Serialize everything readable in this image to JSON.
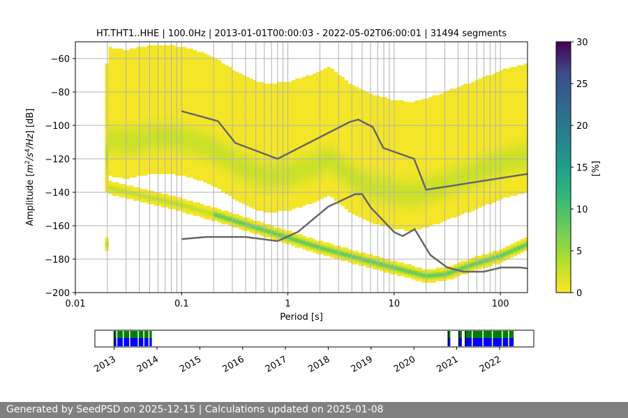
{
  "chart_data": {
    "type": "heatmap",
    "title": "HT.THT1..HHE | 100.0Hz | 2013-01-01T00:00:03 - 2022-05-02T06:00:01 | 31494 segments",
    "xlabel": "Period [s]",
    "ylabel": "Amplitude [m²/s⁴/Hz] [dB]",
    "ylabel_parts": [
      "Amplitude [",
      "m",
      "2",
      "/s",
      "4",
      "/Hz",
      "] [dB]"
    ],
    "xscale": "log",
    "xlim": [
      0.01,
      180
    ],
    "ylim": [
      -200,
      -50
    ],
    "x_ticks": [
      {
        "value": 0.01,
        "label": "0.01"
      },
      {
        "value": 0.1,
        "label": "0.1"
      },
      {
        "value": 1,
        "label": "1"
      },
      {
        "value": 10,
        "label": "10"
      },
      {
        "value": 100,
        "label": "100"
      }
    ],
    "y_ticks": [
      -200,
      -180,
      -160,
      -140,
      -120,
      -100,
      -80,
      -60
    ],
    "grid": true,
    "colorbar": {
      "label": "[%]",
      "range": [
        0,
        30
      ],
      "ticks": [
        0,
        5,
        10,
        15,
        20,
        25,
        30
      ],
      "colormap": "viridis_r"
    },
    "nhnm": {
      "name": "New High Noise Model",
      "x": [
        0.1,
        0.22,
        0.32,
        0.8,
        3.8,
        4.6,
        6.3,
        7.9,
        15.4,
        20,
        180
      ],
      "y": [
        -91.5,
        -97.4,
        -110.5,
        -120,
        -98,
        -96.5,
        -101,
        -113.5,
        -120,
        -138.5,
        -129
      ]
    },
    "nlnm": {
      "name": "New Low Noise Model",
      "x": [
        0.1,
        0.17,
        0.4,
        0.8,
        1.24,
        2.4,
        4.3,
        5,
        6,
        10,
        12,
        15.6,
        21.9,
        31.6,
        45,
        70,
        101,
        154,
        180
      ],
      "y": [
        -168,
        -166.7,
        -166.7,
        -169.2,
        -163.7,
        -148.6,
        -141.1,
        -141.1,
        -149,
        -163.8,
        -166.2,
        -162.1,
        -177.5,
        -185,
        -187.5,
        -187.5,
        -185,
        -185,
        -185.5
      ]
    },
    "psd_ridges": [
      {
        "name": "mode",
        "x": [
          0.02,
          0.03,
          0.05,
          0.08,
          0.12,
          0.2,
          0.35,
          0.6,
          1,
          1.6,
          2.5,
          4,
          6,
          10,
          15,
          20,
          30,
          60,
          100,
          180
        ],
        "y": [
          -108,
          -110,
          -107,
          -107,
          -109,
          -114,
          -124,
          -130,
          -129,
          -125,
          -120,
          -131,
          -136,
          -140,
          -141,
          -139,
          -135,
          -128,
          -122,
          -118
        ]
      },
      {
        "name": "instrument-noise",
        "x": [
          0.02,
          0.05,
          0.1,
          0.2,
          0.5,
          1,
          2,
          5,
          10,
          20,
          30,
          50,
          100,
          180
        ],
        "y": [
          -137,
          -143,
          -147.5,
          -153,
          -161,
          -167,
          -173,
          -180,
          -185,
          -190,
          -189,
          -184,
          -178,
          -171
        ]
      }
    ]
  },
  "availability": {
    "year_labels": [
      "2013",
      "2014",
      "2015",
      "2016",
      "2017",
      "2018",
      "2019",
      "2020",
      "2021",
      "2022"
    ],
    "start_year": 2012.55,
    "end_year": 2022.8,
    "segments": [
      {
        "start": 2013.0,
        "end": 2013.88
      },
      {
        "start": 2020.8,
        "end": 2020.85
      },
      {
        "start": 2021.05,
        "end": 2021.12
      },
      {
        "start": 2021.2,
        "end": 2022.33
      }
    ],
    "gaps": [
      2013.05,
      2013.2,
      2013.35,
      2013.55,
      2013.68,
      2013.8,
      2021.35,
      2021.6,
      2021.82,
      2022.05,
      2022.2
    ],
    "colors": {
      "border": "#000000",
      "top": "#008000",
      "bottom": "#0000ff"
    }
  },
  "footer": {
    "text": "Generated by SeedPSD on 2025-12-15 | Calculations updated on 2025-01-08"
  }
}
